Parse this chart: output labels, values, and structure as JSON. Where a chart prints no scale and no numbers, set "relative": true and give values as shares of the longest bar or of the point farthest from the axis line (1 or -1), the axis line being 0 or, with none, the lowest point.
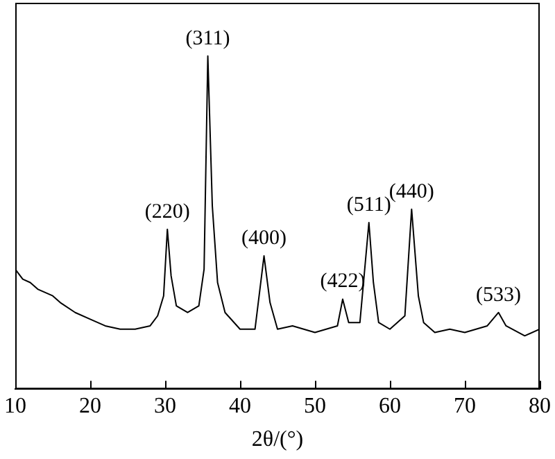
{
  "chart_data": {
    "type": "line",
    "relative": true,
    "xlabel": "2θ/(°)",
    "xlim": [
      10,
      80
    ],
    "xticks": [
      10,
      20,
      30,
      40,
      50,
      60,
      70,
      80
    ],
    "grid": false,
    "legend": false,
    "marker": "none",
    "line_style": "solid",
    "tick_labels": "x",
    "x": [
      10,
      11,
      12,
      13,
      15,
      16,
      18,
      20,
      22,
      24,
      26,
      28,
      29,
      29.8,
      30.3,
      30.8,
      31.5,
      33,
      34.5,
      35.2,
      35.7,
      36.3,
      37,
      38,
      40,
      42,
      43.2,
      44,
      45,
      47,
      50,
      53,
      53.7,
      54.5,
      56,
      57.2,
      57.8,
      58.5,
      60,
      62,
      62.9,
      63.8,
      64.5,
      66,
      68,
      70,
      73,
      74.5,
      75.5,
      78,
      80
    ],
    "series": [
      {
        "color": "#000000",
        "values": [
          0.36,
          0.33,
          0.32,
          0.3,
          0.28,
          0.26,
          0.23,
          0.21,
          0.19,
          0.18,
          0.18,
          0.19,
          0.22,
          0.28,
          0.48,
          0.34,
          0.25,
          0.23,
          0.25,
          0.36,
          1,
          0.55,
          0.32,
          0.23,
          0.18,
          0.18,
          0.4,
          0.26,
          0.18,
          0.19,
          0.17,
          0.19,
          0.27,
          0.2,
          0.2,
          0.5,
          0.32,
          0.2,
          0.18,
          0.22,
          0.54,
          0.28,
          0.2,
          0.17,
          0.18,
          0.17,
          0.19,
          0.23,
          0.19,
          0.16,
          0.18
        ]
      }
    ],
    "annotations": [
      {
        "text": "(220)",
        "x": 30.3,
        "y": 0.48
      },
      {
        "text": "(311)",
        "x": 35.7,
        "y": 1
      },
      {
        "text": "(400)",
        "x": 43.2,
        "y": 0.4
      },
      {
        "text": "(422)",
        "x": 53.7,
        "y": 0.27
      },
      {
        "text": "(511)",
        "x": 57.2,
        "y": 0.5
      },
      {
        "text": "(440)",
        "x": 62.9,
        "y": 0.54
      },
      {
        "text": "(533)",
        "x": 74.5,
        "y": 0.23
      }
    ]
  }
}
